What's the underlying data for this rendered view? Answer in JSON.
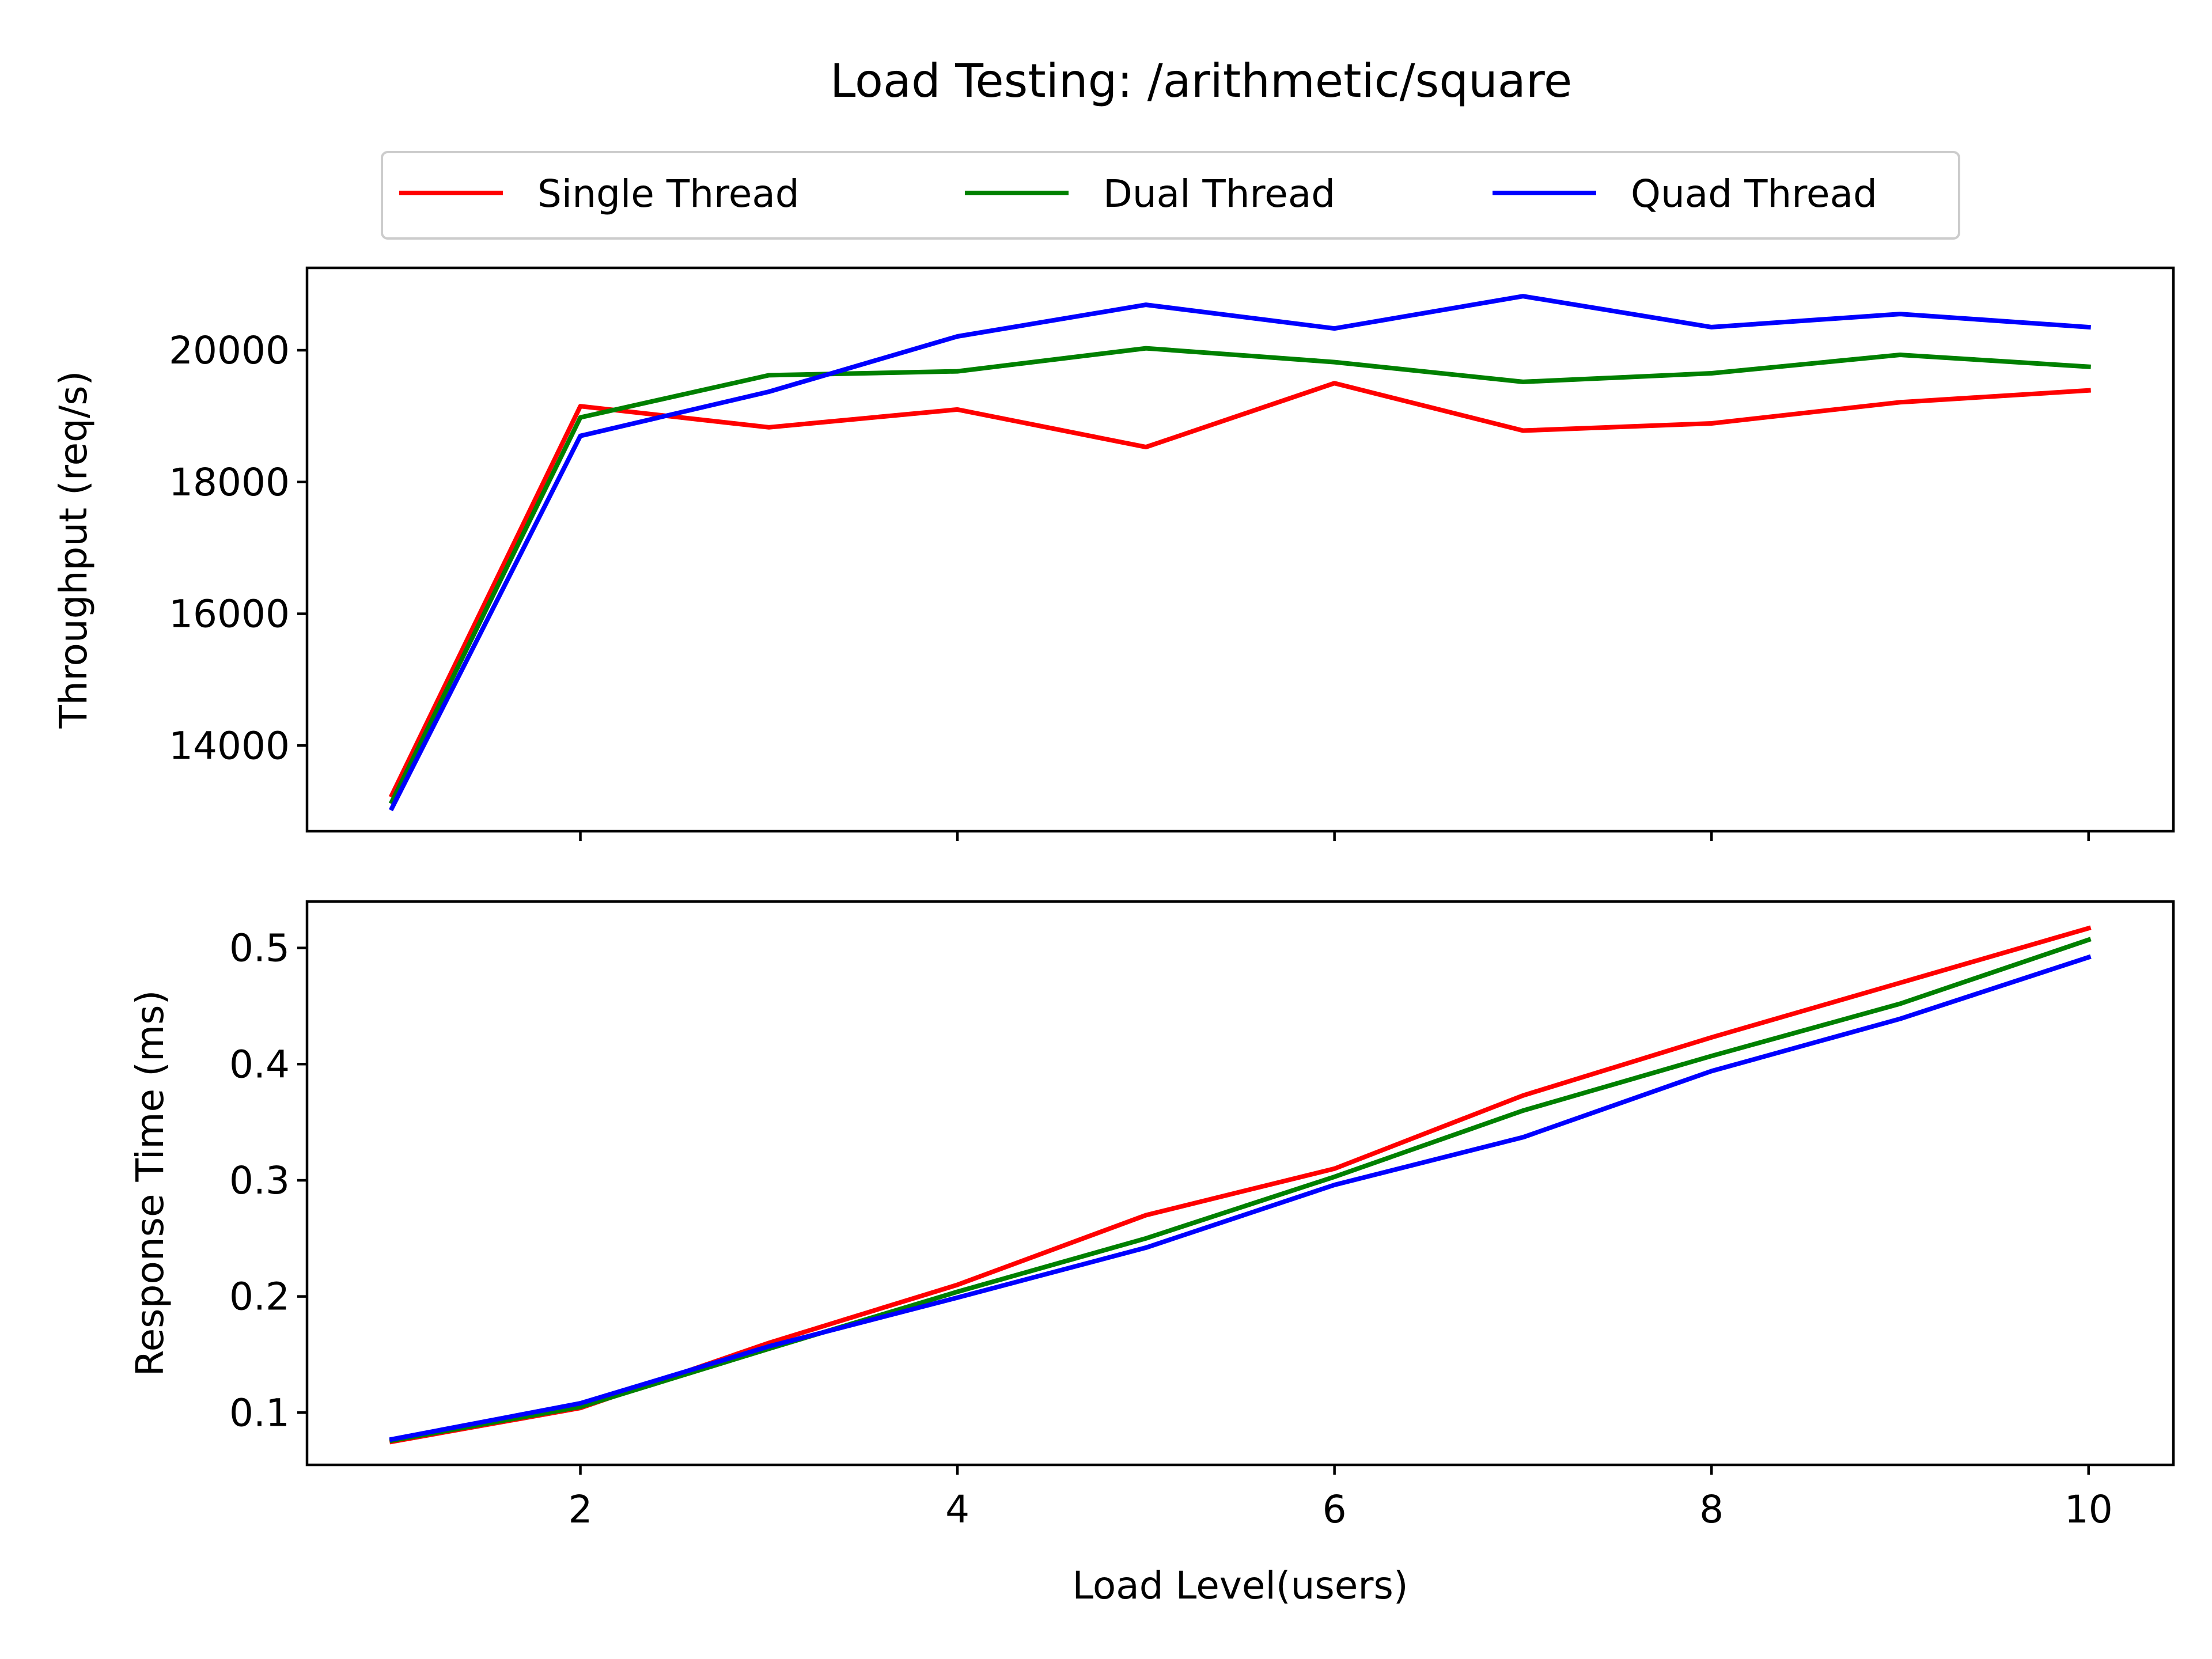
{
  "chart_data": {
    "type": "line",
    "title": "Load Testing: /arithmetic/square",
    "xlabel": "Load Level(users)",
    "legend": {
      "placement": "top-center",
      "entries": [
        "Single Thread",
        "Dual Thread",
        "Quad Thread"
      ]
    },
    "colors": {
      "Single Thread": "#ff0000",
      "Dual Thread": "#008000",
      "Quad Thread": "#0000ff"
    },
    "x": [
      1,
      2,
      3,
      4,
      5,
      6,
      7,
      8,
      9,
      10
    ],
    "xlim": [
      0.55,
      10.45
    ],
    "x_ticks": [
      2,
      4,
      6,
      8,
      10
    ],
    "x_tick_labels": [
      "2",
      "4",
      "6",
      "8",
      "10"
    ],
    "grid": false,
    "panels": [
      {
        "ylabel": "Throughput (req/s)",
        "ylim": [
          12700,
          21250
        ],
        "y_ticks": [
          14000,
          16000,
          18000,
          20000
        ],
        "y_tick_labels": [
          "14000",
          "16000",
          "18000",
          "20000"
        ],
        "series": [
          {
            "name": "Single Thread",
            "values": [
              13250,
              19150,
              18830,
              19100,
              18530,
              19500,
              18780,
              18890,
              19210,
              19390
            ]
          },
          {
            "name": "Dual Thread",
            "values": [
              13150,
              18980,
              19620,
              19680,
              20030,
              19820,
              19520,
              19650,
              19930,
              19750
            ]
          },
          {
            "name": "Quad Thread",
            "values": [
              13050,
              18700,
              19370,
              20210,
              20690,
              20330,
              20820,
              20350,
              20550,
              20350
            ]
          }
        ]
      },
      {
        "ylabel": "Response Time (ms)",
        "ylim": [
          0.055,
          0.54
        ],
        "y_ticks": [
          0.1,
          0.2,
          0.3,
          0.4,
          0.5
        ],
        "y_tick_labels": [
          "0.1",
          "0.2",
          "0.3",
          "0.4",
          "0.5"
        ],
        "series": [
          {
            "name": "Single Thread",
            "values": [
              0.075,
              0.104,
              0.16,
              0.21,
              0.27,
              0.31,
              0.373,
              0.423,
              0.47,
              0.517
            ]
          },
          {
            "name": "Dual Thread",
            "values": [
              0.076,
              0.105,
              0.155,
              0.204,
              0.25,
              0.303,
              0.36,
              0.407,
              0.452,
              0.507
            ]
          },
          {
            "name": "Quad Thread",
            "values": [
              0.077,
              0.108,
              0.157,
              0.199,
              0.242,
              0.296,
              0.337,
              0.394,
              0.439,
              0.492
            ]
          }
        ]
      }
    ]
  }
}
